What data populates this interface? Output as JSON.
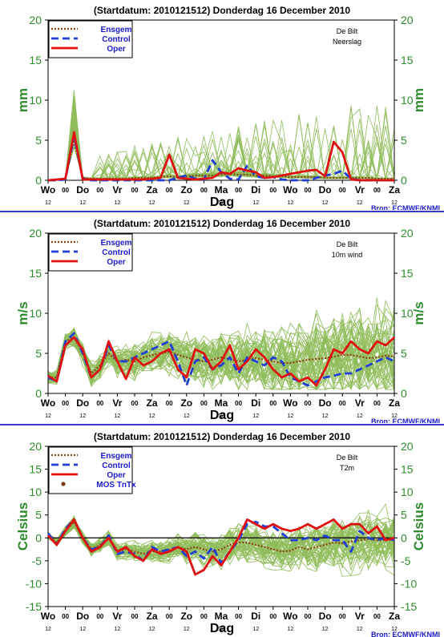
{
  "colors": {
    "ensemble": "#8fbc5a",
    "ensgem": "#8b4513",
    "control": "#1f3fd6",
    "oper": "#e01010",
    "mos": "#7a3b1a",
    "axis_text": "#000000",
    "green_text": "#2e8b2e",
    "blue_text": "#1a1acc",
    "divider": "#3a3acc"
  },
  "source_label": "Bron: ECMWF/KNMI",
  "x_axis": {
    "label": "Dag",
    "day_labels": [
      "Wo",
      "Do",
      "Vr",
      "Za",
      "Zo",
      "Ma",
      "Di",
      "Wo",
      "Do",
      "Vr",
      "Za"
    ],
    "hour_label": "12",
    "hour_label_alt": "00"
  },
  "chart_data": [
    {
      "type": "line",
      "title": "(Startdatum: 2010121512)   Donderdag 16 December  2010",
      "station": "De Bilt",
      "variable": "Neerslag",
      "ylabel": "mm",
      "ylim": [
        0,
        20
      ],
      "yticks": [
        0,
        5,
        10,
        15,
        20
      ],
      "x_days": [
        0,
        10
      ],
      "legend": [
        "Ensgem",
        "Control",
        "Oper"
      ],
      "ensgem": [
        0.0,
        0.0,
        0.2,
        5.0,
        0.3,
        0.2,
        0.2,
        0.2,
        0.2,
        0.2,
        0.3,
        0.3,
        0.3,
        0.4,
        0.5,
        0.4,
        0.5,
        0.6,
        0.6,
        0.6,
        0.7,
        0.8,
        0.7,
        0.7,
        0.6,
        0.6,
        0.5,
        0.5,
        0.4,
        0.4,
        0.4,
        0.4,
        0.3,
        0.3,
        0.3,
        0.3,
        0.3,
        0.3,
        0.2,
        0.2,
        0.2
      ],
      "control": [
        0.0,
        0.0,
        0.1,
        5.5,
        0.2,
        0.0,
        0.0,
        0.0,
        0.0,
        0.0,
        0.0,
        0.0,
        0.0,
        0.0,
        0.0,
        0.3,
        0.6,
        0.2,
        0.1,
        2.5,
        1.0,
        0.2,
        0.1,
        1.8,
        0.5,
        0.3,
        0.4,
        0.1,
        0.0,
        0.0,
        0.0,
        0.3,
        0.6,
        0.8,
        1.2,
        0.2,
        0.0,
        0.0,
        0.0,
        0.0,
        0.0
      ],
      "oper": [
        0.0,
        0.1,
        0.2,
        6.0,
        0.1,
        0.1,
        0.1,
        0.1,
        0.1,
        0.1,
        0.1,
        0.1,
        0.2,
        0.3,
        3.2,
        0.3,
        0.2,
        0.1,
        0.2,
        0.3,
        1.0,
        0.8,
        1.5,
        1.2,
        1.0,
        0.3,
        0.4,
        0.6,
        0.8,
        1.0,
        1.2,
        1.3,
        0.5,
        4.8,
        3.5,
        0.1,
        0.0,
        0.0,
        0.0,
        0.0,
        0.0
      ]
    },
    {
      "type": "line",
      "title": "(Startdatum: 2010121512)   Donderdag 16 December  2010",
      "station": "De Bilt",
      "variable": "10m wind",
      "ylabel": "m/s",
      "ylim": [
        0,
        20
      ],
      "yticks": [
        0,
        5,
        10,
        15,
        20
      ],
      "x_days": [
        0,
        10
      ],
      "legend": [
        "Ensgem",
        "Control",
        "Oper"
      ],
      "ensgem": [
        2.0,
        2.0,
        6.5,
        7.0,
        5.0,
        2.5,
        3.5,
        5.0,
        4.0,
        4.2,
        4.0,
        4.5,
        4.8,
        5.0,
        5.2,
        4.8,
        4.5,
        4.2,
        4.0,
        4.2,
        4.5,
        4.3,
        4.0,
        4.2,
        4.4,
        4.2,
        4.0,
        3.8,
        3.8,
        4.0,
        4.2,
        4.3,
        4.4,
        4.6,
        4.8,
        4.8,
        4.6,
        4.4,
        4.5,
        4.7,
        4.6
      ],
      "control": [
        2.0,
        1.5,
        6.5,
        7.5,
        5.0,
        2.0,
        3.0,
        6.0,
        4.0,
        4.0,
        4.5,
        5.0,
        5.5,
        6.0,
        6.5,
        4.0,
        1.0,
        4.0,
        4.5,
        3.0,
        3.5,
        4.5,
        2.5,
        4.5,
        4.0,
        3.5,
        4.5,
        4.0,
        2.0,
        1.5,
        1.0,
        1.5,
        2.0,
        2.2,
        2.5,
        2.5,
        3.0,
        3.5,
        4.0,
        4.5,
        4.0
      ],
      "oper": [
        2.2,
        1.5,
        6.0,
        7.0,
        5.5,
        2.0,
        3.0,
        6.5,
        4.0,
        1.8,
        4.5,
        3.5,
        4.0,
        5.0,
        5.5,
        3.0,
        2.0,
        5.5,
        5.0,
        3.0,
        4.0,
        6.0,
        3.0,
        4.0,
        5.5,
        4.5,
        3.0,
        2.0,
        2.5,
        1.5,
        2.0,
        1.0,
        3.0,
        5.5,
        5.0,
        6.5,
        5.5,
        5.0,
        6.5,
        6.0,
        7.0
      ]
    },
    {
      "type": "line",
      "title": "(Startdatum: 2010121512)   Donderdag 16 December  2010",
      "station": "De Bilt",
      "variable": "T2m",
      "ylabel": "Celsius",
      "ylim": [
        -15,
        20
      ],
      "yticks": [
        -15,
        -10,
        -5,
        0,
        5,
        10,
        15,
        20
      ],
      "x_days": [
        0,
        10
      ],
      "legend": [
        "Ensgem",
        "Control",
        "Oper",
        "MOS TnTx"
      ],
      "ensgem": [
        0.5,
        -1.0,
        1.5,
        3.5,
        0.0,
        -2.5,
        -1.5,
        0.0,
        -3.0,
        -2.5,
        -3.0,
        -3.5,
        -3.0,
        -3.0,
        -2.5,
        -2.0,
        -2.5,
        -2.0,
        -2.5,
        -3.0,
        -2.5,
        -1.5,
        -1.0,
        -1.0,
        -1.5,
        -2.0,
        -2.5,
        -3.0,
        -2.8,
        -2.0,
        -2.5,
        -2.0,
        -1.5,
        -1.0,
        -1.2,
        -0.8,
        -0.5,
        -0.3,
        -0.5,
        -0.5,
        -0.3
      ],
      "control": [
        1.0,
        -1.5,
        2.0,
        4.0,
        0.0,
        -2.5,
        -2.0,
        0.5,
        -3.5,
        -3.0,
        -3.5,
        -5.0,
        -2.0,
        -3.0,
        -2.5,
        -2.0,
        -4.0,
        -3.0,
        -4.5,
        -2.0,
        -5.5,
        -3.0,
        -0.5,
        3.0,
        3.5,
        2.5,
        2.5,
        1.0,
        -0.5,
        -0.5,
        0.0,
        -0.5,
        0.5,
        -0.5,
        -0.5,
        -3.0,
        1.5,
        0.0,
        -0.5,
        0.0,
        -0.5
      ],
      "oper": [
        0.5,
        -1.5,
        1.5,
        4.0,
        0.0,
        -3.0,
        -2.0,
        0.0,
        -3.0,
        -2.0,
        -4.0,
        -5.0,
        -2.5,
        -3.5,
        -3.0,
        -2.0,
        -3.0,
        -8.0,
        -7.0,
        -4.0,
        -6.0,
        -3.0,
        0.0,
        4.0,
        3.0,
        2.0,
        3.0,
        2.0,
        1.5,
        2.0,
        3.0,
        2.0,
        3.0,
        4.0,
        2.0,
        3.0,
        3.0,
        1.0,
        2.5,
        -0.5,
        0.0
      ]
    }
  ]
}
